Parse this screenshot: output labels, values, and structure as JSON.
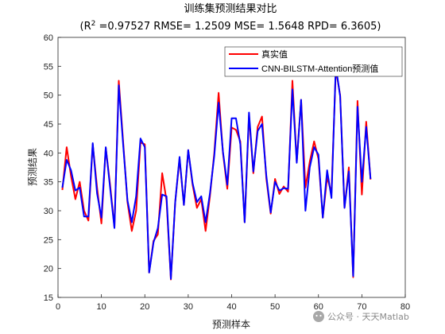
{
  "chart_data": {
    "type": "line",
    "title": "训练集预测结果对比",
    "subtitle_parts": {
      "r_prefix": "(R",
      "r_sup": "2",
      "rest": " =0.97527 RMSE= 1.2509 MSE= 1.5648 RPD= 6.3605)"
    },
    "xlabel": "预测样本",
    "ylabel": "预测结果",
    "xlim": [
      0,
      80
    ],
    "ylim": [
      15,
      60
    ],
    "xticks": [
      "0",
      "10",
      "20",
      "30",
      "40",
      "50",
      "60",
      "70",
      "80"
    ],
    "yticks": [
      "15",
      "20",
      "25",
      "30",
      "35",
      "40",
      "45",
      "50",
      "55",
      "60"
    ],
    "legend_position": "top-right",
    "x": [
      1,
      2,
      3,
      4,
      5,
      6,
      7,
      8,
      9,
      10,
      11,
      12,
      13,
      14,
      15,
      16,
      17,
      18,
      19,
      20,
      21,
      22,
      23,
      24,
      25,
      26,
      27,
      28,
      29,
      30,
      31,
      32,
      33,
      34,
      35,
      36,
      37,
      38,
      39,
      40,
      41,
      42,
      43,
      44,
      45,
      46,
      47,
      48,
      49,
      50,
      51,
      52,
      53,
      54,
      55,
      56,
      57,
      58,
      59,
      60,
      61,
      62,
      63,
      64,
      65,
      66,
      67,
      68,
      69,
      70,
      71,
      72
    ],
    "series": [
      {
        "name": "真实值",
        "color": "#ff0000",
        "values": [
          33.6,
          41.0,
          36.0,
          32.0,
          35.0,
          30.0,
          28.3,
          41.5,
          34.0,
          27.8,
          40.9,
          34.5,
          27.1,
          52.5,
          42.0,
          31.5,
          26.5,
          30.0,
          41.8,
          41.5,
          19.3,
          24.8,
          25.9,
          36.5,
          31.8,
          18.1,
          31.5,
          39.0,
          31.0,
          40.5,
          34.5,
          30.5,
          32.0,
          26.5,
          32.5,
          40.0,
          50.4,
          40.0,
          33.8,
          44.4,
          44.0,
          42.0,
          28.0,
          46.5,
          36.5,
          44.5,
          46.3,
          35.5,
          29.5,
          35.5,
          32.9,
          34.2,
          33.3,
          52.5,
          38.5,
          49.2,
          34.0,
          38.5,
          42.0,
          39.0,
          28.8,
          35.8,
          33.1,
          54.5,
          50.0,
          30.5,
          37.5,
          18.5,
          49.0,
          32.8,
          45.4,
          35.4
        ]
      },
      {
        "name": "CNN-BILSTM-Attention预测值",
        "color": "#0000ff",
        "values": [
          34.0,
          38.8,
          37.0,
          33.5,
          34.0,
          29.0,
          29.0,
          41.7,
          33.0,
          28.8,
          41.0,
          34.0,
          27.0,
          51.7,
          41.5,
          31.8,
          28.0,
          32.5,
          42.5,
          41.0,
          19.3,
          24.5,
          27.0,
          32.8,
          32.5,
          18.2,
          31.5,
          39.3,
          31.0,
          40.5,
          34.8,
          31.5,
          32.5,
          28.0,
          33.0,
          39.5,
          48.7,
          40.2,
          34.5,
          46.0,
          46.0,
          41.5,
          28.0,
          47.0,
          36.8,
          43.8,
          45.0,
          36.0,
          29.7,
          35.0,
          33.5,
          33.9,
          33.8,
          51.0,
          38.3,
          49.2,
          30.0,
          37.5,
          41.0,
          39.7,
          28.8,
          37.0,
          32.2,
          55.0,
          49.8,
          30.5,
          36.8,
          18.7,
          48.0,
          35.0,
          44.5,
          35.5
        ]
      }
    ]
  },
  "watermark": {
    "text": "公众号 · 天天Matlab"
  }
}
